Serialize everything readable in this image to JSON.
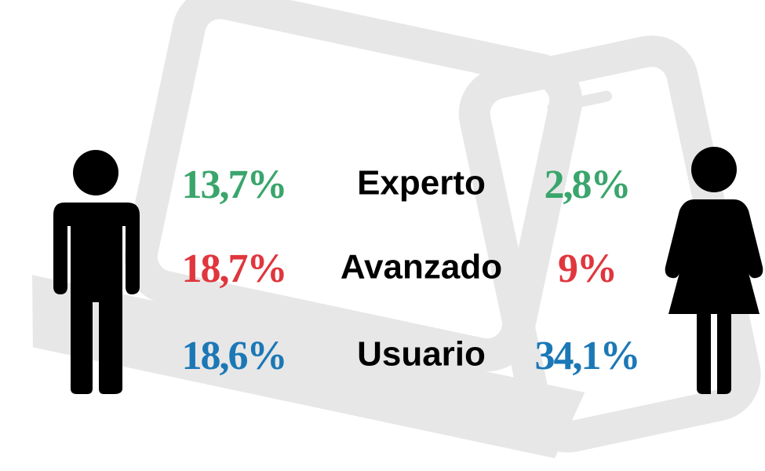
{
  "rows": [
    {
      "label": "Experto",
      "men": "13,7%",
      "women": "2,8%",
      "color": "#3aa56c"
    },
    {
      "label": "Avanzado",
      "men": "18,7%",
      "women": "9%",
      "color": "#e0363d"
    },
    {
      "label": "Usuario",
      "men": "18,6%",
      "women": "34,1%",
      "color": "#1b78b6"
    }
  ]
}
